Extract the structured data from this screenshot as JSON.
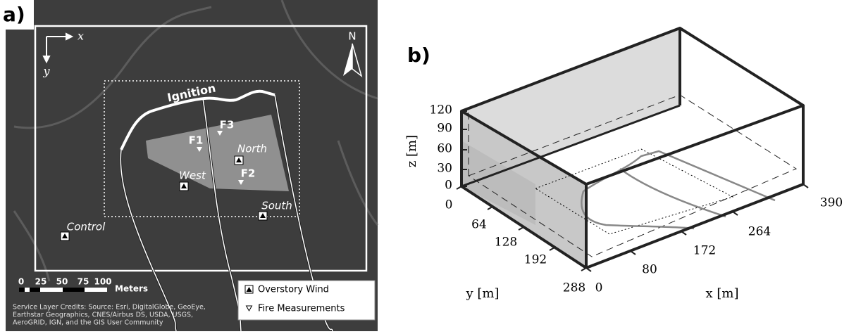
{
  "panel_a": {
    "label": "a)",
    "x_axis": "x",
    "y_axis": "y",
    "north": "N",
    "ignition": "Ignition",
    "sites": [
      {
        "label": "F1"
      },
      {
        "label": "F2"
      },
      {
        "label": "F3"
      },
      {
        "label": "North"
      },
      {
        "label": "West"
      },
      {
        "label": "South"
      },
      {
        "label": "Control"
      }
    ],
    "scale_bar": {
      "labels": [
        "0",
        "25",
        "50",
        "75",
        "100"
      ],
      "unit": "Meters"
    },
    "legend": [
      "Overstory Wind",
      "Fire Measurements"
    ],
    "credits": [
      "Service Layer Credits:  Source: Esri, DigitalGlobe, GeoEye,",
      "Earthstar Geographics, CNES/Airbus DS, USDA, USGS,",
      "AeroGRID, IGN, and the GIS User Community"
    ]
  },
  "panel_b": {
    "label": "b)",
    "z_ticks": [
      "0",
      "30",
      "60",
      "90",
      "120"
    ],
    "y_ticks": [
      "0",
      "64",
      "128",
      "192",
      "288"
    ],
    "x_ticks": [
      "0",
      "80",
      "172",
      "264",
      "390"
    ],
    "x_label": "x [m]",
    "y_label": "y [m]",
    "z_label": "z [m]"
  }
}
